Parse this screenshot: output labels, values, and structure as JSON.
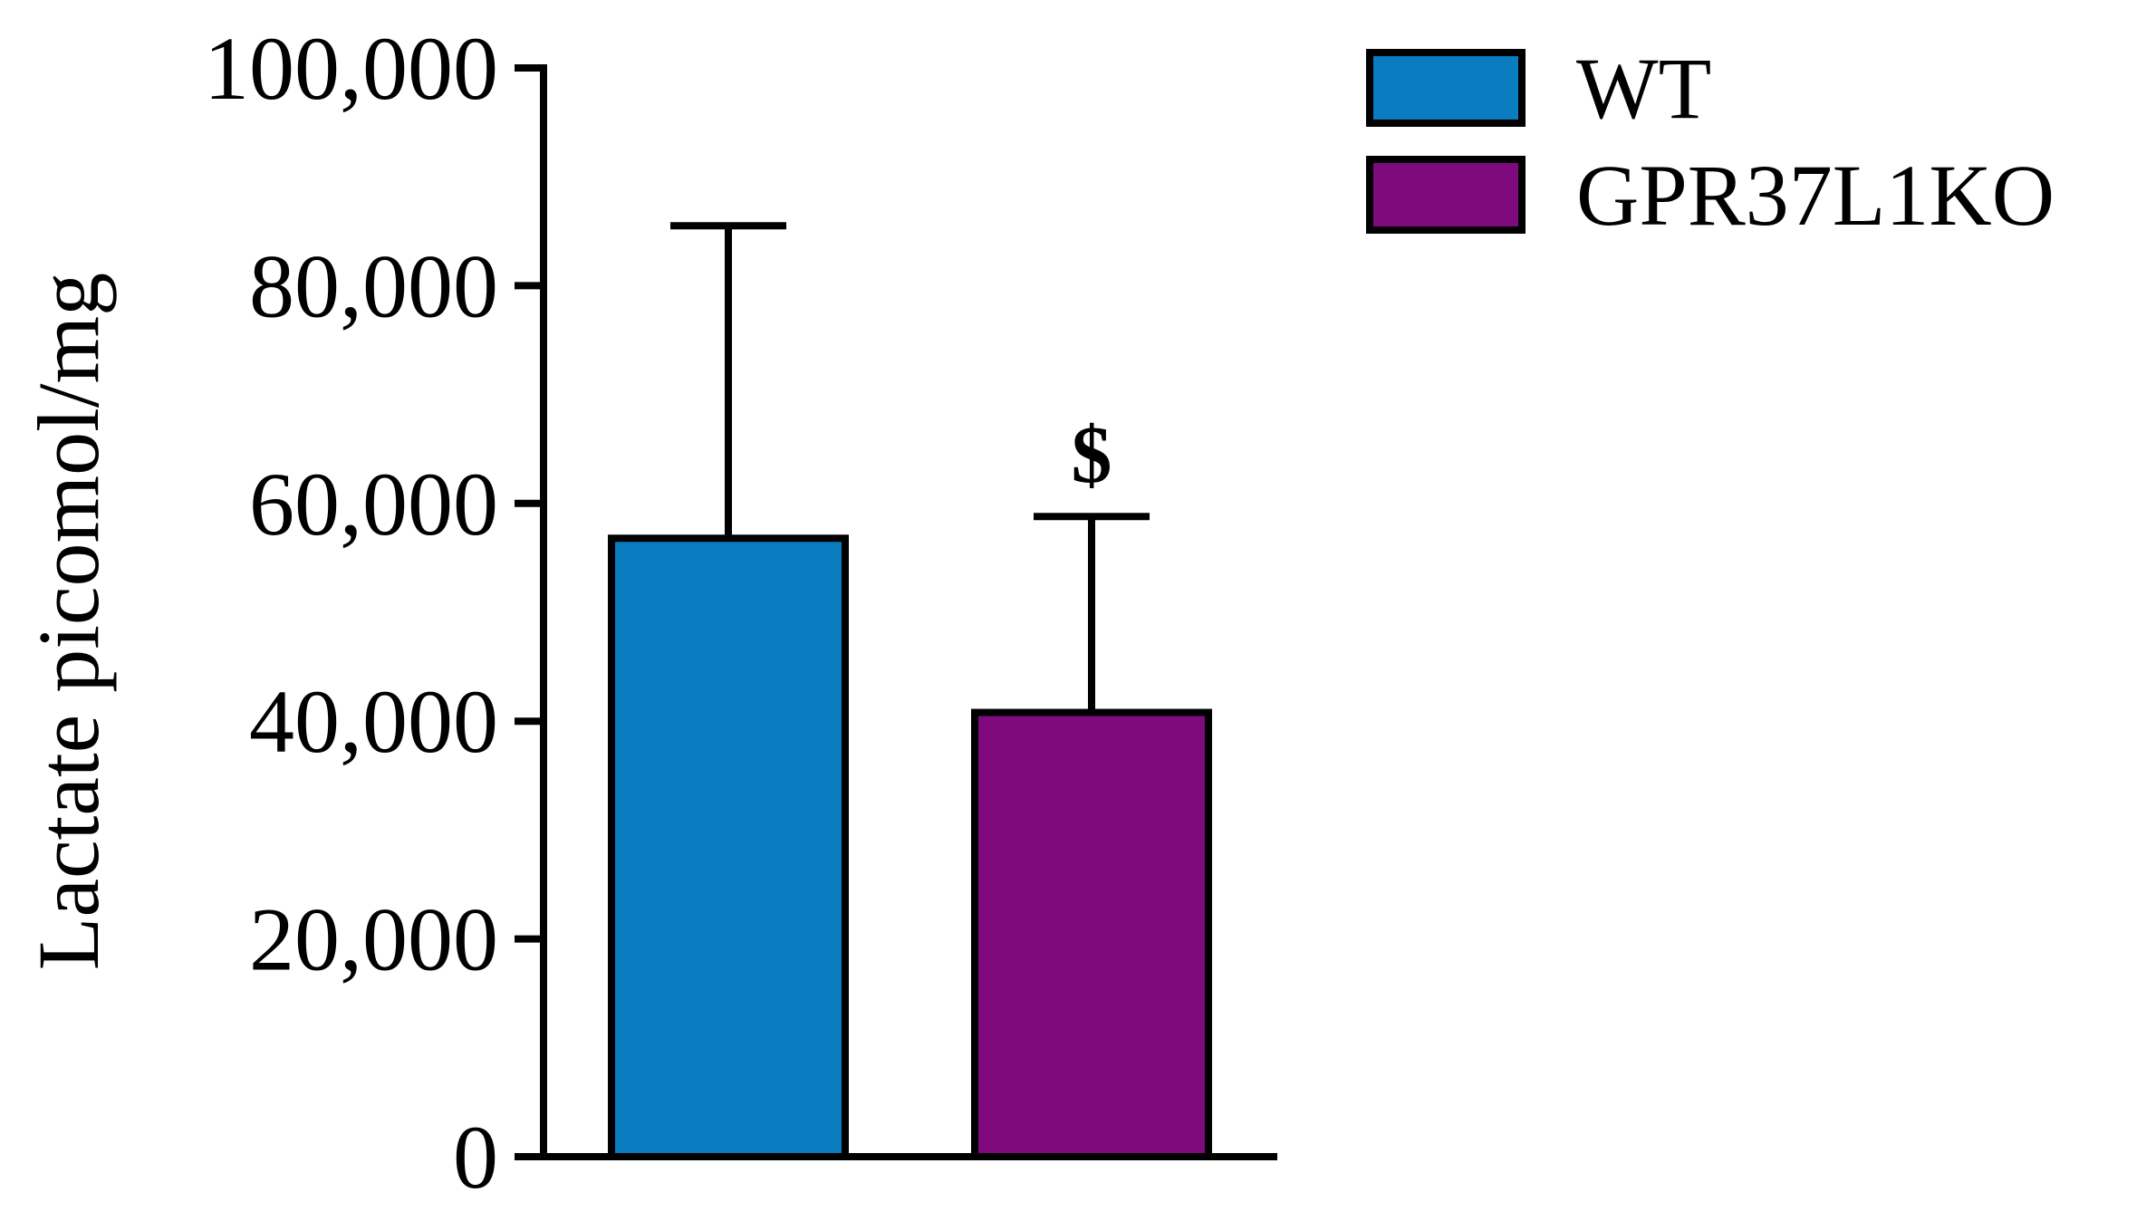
{
  "chart_data": {
    "type": "bar",
    "title": "",
    "xlabel": "",
    "ylabel": "Lactate picomol/mg",
    "ylim": [
      0,
      100000
    ],
    "yticks": [
      0,
      20000,
      40000,
      60000,
      80000,
      100000
    ],
    "ytick_labels": [
      "0",
      "20,000",
      "40,000",
      "60,000",
      "80,000",
      "100,000"
    ],
    "grid": false,
    "legend_position": "top-right",
    "series": [
      {
        "name": "WT",
        "value": 56800,
        "error": 28700,
        "color": "#0a7cc0",
        "annotation": ""
      },
      {
        "name": "GPR37L1KO",
        "value": 40800,
        "error": 18000,
        "color": "#7e0a7d",
        "annotation": "$"
      }
    ]
  }
}
